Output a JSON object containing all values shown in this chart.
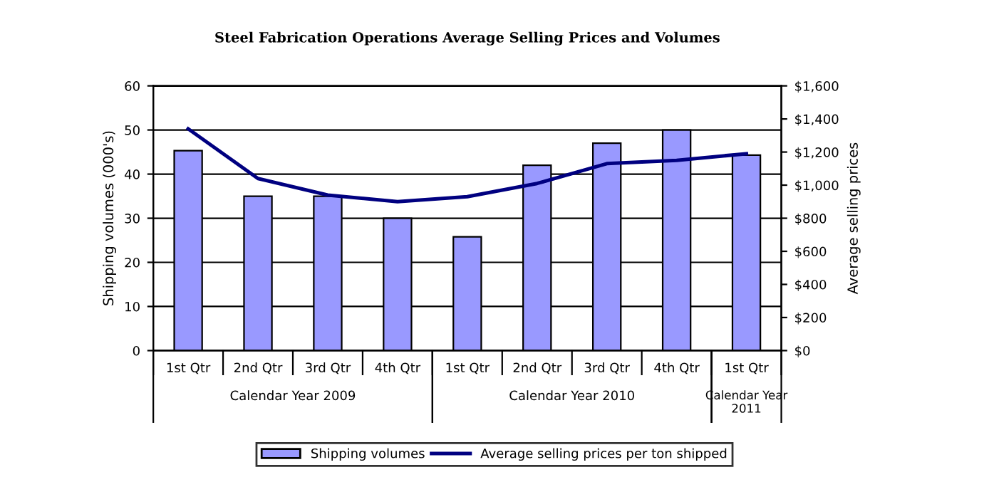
{
  "chart_data": {
    "type": "bar",
    "title": "Steel Fabrication Operations Average Selling Prices and Volumes",
    "categories": [
      "1st Qtr",
      "2nd Qtr",
      "3rd Qtr",
      "4th Qtr",
      "1st Qtr",
      "2nd Qtr",
      "3rd Qtr",
      "4th Qtr",
      "1st Qtr"
    ],
    "series": [
      {
        "name": "Shipping volumes",
        "color": "#9999ff",
        "values": [
          45.3,
          35,
          35,
          30,
          25.8,
          42,
          47,
          50,
          44.3
        ]
      },
      {
        "name": "Average selling prices per ton shipped",
        "type": "line",
        "axis": "y2",
        "color": "#000080",
        "values": [
          1340,
          1040,
          940,
          900,
          930,
          1010,
          1130,
          1150,
          1190
        ]
      }
    ],
    "ylabel": "Shipping volumes (000's)",
    "y2label": "Average selling prices",
    "ylim": [
      0,
      60
    ],
    "yticks": [
      0,
      10,
      20,
      30,
      40,
      50,
      60
    ],
    "y2lim": [
      0,
      1600
    ],
    "y2ticks": [
      {
        "value": 0,
        "label": "$0"
      },
      {
        "value": 200,
        "label": "$200"
      },
      {
        "value": 400,
        "label": "$400"
      },
      {
        "value": 600,
        "label": "$600"
      },
      {
        "value": 800,
        "label": "$800"
      },
      {
        "value": 1000,
        "label": "$1,000"
      },
      {
        "value": 1200,
        "label": "$1,200"
      },
      {
        "value": 1400,
        "label": "$1,400"
      },
      {
        "value": 1600,
        "label": "$1,600"
      }
    ],
    "annotations": [
      "Calendar Year 2009",
      "Calendar Year 2010",
      "Calendar Year\n2011"
    ],
    "grid": "y",
    "legend": "bottom",
    "marker": "none",
    "line_style": "solid"
  }
}
